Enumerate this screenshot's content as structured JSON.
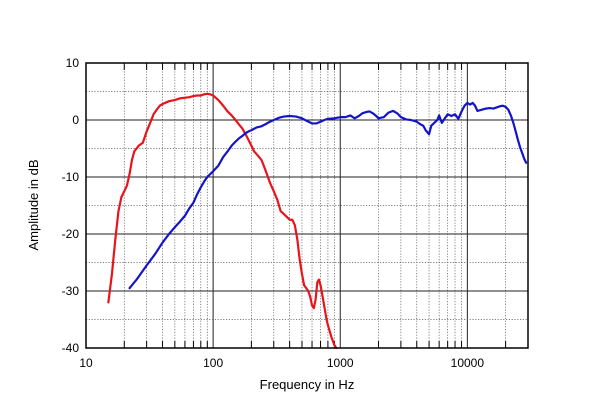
{
  "chart_data": {
    "type": "line",
    "title": "",
    "xlabel": "Frequency in Hz",
    "ylabel": "Amplitude in dB",
    "xscale": "log",
    "xlim": [
      10,
      30000
    ],
    "ylim": [
      -40,
      10
    ],
    "x_ticks": [
      {
        "value": 10,
        "label": "10"
      },
      {
        "value": 100,
        "label": "100"
      },
      {
        "value": 1000,
        "label": "1000"
      },
      {
        "value": 10000,
        "label": "10000"
      }
    ],
    "y_ticks": [
      {
        "value": 10,
        "label": "10"
      },
      {
        "value": 0,
        "label": "0"
      },
      {
        "value": -10,
        "label": "-10"
      },
      {
        "value": -20,
        "label": "-20"
      },
      {
        "value": -30,
        "label": "-30"
      },
      {
        "value": -40,
        "label": "-40"
      }
    ],
    "grid": true,
    "legend": "none",
    "series": [
      {
        "color": "#e8141c",
        "points": [
          [
            15,
            -32
          ],
          [
            16,
            -27
          ],
          [
            17,
            -21
          ],
          [
            18,
            -16
          ],
          [
            19,
            -13.5
          ],
          [
            20,
            -12.5
          ],
          [
            21,
            -11.5
          ],
          [
            22,
            -9.5
          ],
          [
            23,
            -7
          ],
          [
            24,
            -5.5
          ],
          [
            26,
            -4.5
          ],
          [
            28,
            -4
          ],
          [
            30,
            -2
          ],
          [
            32,
            -0.5
          ],
          [
            34,
            1
          ],
          [
            36,
            1.8
          ],
          [
            38,
            2.5
          ],
          [
            40,
            2.8
          ],
          [
            45,
            3.3
          ],
          [
            50,
            3.5
          ],
          [
            55,
            3.8
          ],
          [
            60,
            3.9
          ],
          [
            65,
            4
          ],
          [
            70,
            4.2
          ],
          [
            75,
            4.3
          ],
          [
            80,
            4.3
          ],
          [
            85,
            4.5
          ],
          [
            90,
            4.6
          ],
          [
            95,
            4.5
          ],
          [
            100,
            4.3
          ],
          [
            110,
            3.5
          ],
          [
            120,
            2.5
          ],
          [
            130,
            1.5
          ],
          [
            140,
            0.8
          ],
          [
            150,
            0
          ],
          [
            160,
            -0.8
          ],
          [
            170,
            -1.5
          ],
          [
            180,
            -2.5
          ],
          [
            190,
            -3.5
          ],
          [
            200,
            -4.5
          ],
          [
            210,
            -5.5
          ],
          [
            220,
            -6
          ],
          [
            230,
            -6.5
          ],
          [
            240,
            -7
          ],
          [
            250,
            -8
          ],
          [
            260,
            -9
          ],
          [
            280,
            -11
          ],
          [
            300,
            -12.5
          ],
          [
            320,
            -14
          ],
          [
            340,
            -16
          ],
          [
            360,
            -16.5
          ],
          [
            380,
            -17
          ],
          [
            400,
            -17.5
          ],
          [
            420,
            -17.5
          ],
          [
            440,
            -18.5
          ],
          [
            460,
            -21
          ],
          [
            480,
            -24.5
          ],
          [
            500,
            -27
          ],
          [
            520,
            -29
          ],
          [
            540,
            -29.5
          ],
          [
            560,
            -30
          ],
          [
            580,
            -31
          ],
          [
            600,
            -32.5
          ],
          [
            620,
            -33
          ],
          [
            640,
            -31.5
          ],
          [
            660,
            -28.5
          ],
          [
            680,
            -28
          ],
          [
            700,
            -29
          ],
          [
            720,
            -30.5
          ],
          [
            740,
            -32
          ],
          [
            760,
            -33.5
          ],
          [
            780,
            -35
          ],
          [
            800,
            -36
          ],
          [
            850,
            -38
          ],
          [
            900,
            -39.5
          ],
          [
            930,
            -40
          ]
        ]
      },
      {
        "color": "#1414c8",
        "points": [
          [
            22,
            -29.5
          ],
          [
            25,
            -28
          ],
          [
            30,
            -25.5
          ],
          [
            35,
            -23.5
          ],
          [
            40,
            -21.5
          ],
          [
            45,
            -20
          ],
          [
            50,
            -18.8
          ],
          [
            55,
            -17.8
          ],
          [
            60,
            -16.8
          ],
          [
            65,
            -15.5
          ],
          [
            70,
            -14.5
          ],
          [
            75,
            -13
          ],
          [
            80,
            -11.8
          ],
          [
            85,
            -10.8
          ],
          [
            90,
            -10
          ],
          [
            100,
            -9
          ],
          [
            110,
            -8
          ],
          [
            120,
            -6.5
          ],
          [
            130,
            -5.5
          ],
          [
            140,
            -4.5
          ],
          [
            150,
            -3.8
          ],
          [
            160,
            -3.2
          ],
          [
            170,
            -2.8
          ],
          [
            180,
            -2.3
          ],
          [
            190,
            -2
          ],
          [
            200,
            -1.8
          ],
          [
            220,
            -1.3
          ],
          [
            240,
            -1.1
          ],
          [
            260,
            -0.7
          ],
          [
            280,
            -0.3
          ],
          [
            300,
            0
          ],
          [
            330,
            0.4
          ],
          [
            360,
            0.6
          ],
          [
            400,
            0.7
          ],
          [
            450,
            0.6
          ],
          [
            500,
            0.3
          ],
          [
            550,
            -0.2
          ],
          [
            600,
            -0.6
          ],
          [
            650,
            -0.6
          ],
          [
            700,
            -0.3
          ],
          [
            750,
            0
          ],
          [
            800,
            0.2
          ],
          [
            900,
            0.3
          ],
          [
            1000,
            0.5
          ],
          [
            1100,
            0.5
          ],
          [
            1200,
            0.8
          ],
          [
            1300,
            0.3
          ],
          [
            1400,
            0.7
          ],
          [
            1500,
            1.2
          ],
          [
            1600,
            1.4
          ],
          [
            1700,
            1.5
          ],
          [
            1800,
            1.2
          ],
          [
            1900,
            0.8
          ],
          [
            2000,
            0.3
          ],
          [
            2200,
            0.5
          ],
          [
            2400,
            1.3
          ],
          [
            2600,
            1.6
          ],
          [
            2800,
            1.2
          ],
          [
            3000,
            0.5
          ],
          [
            3300,
            0.1
          ],
          [
            3600,
            0
          ],
          [
            4000,
            -0.3
          ],
          [
            4300,
            -0.8
          ],
          [
            4500,
            -1
          ],
          [
            4700,
            -1.8
          ],
          [
            5000,
            -2.5
          ],
          [
            5200,
            -1
          ],
          [
            5500,
            -0.5
          ],
          [
            5800,
            0
          ],
          [
            6000,
            0.8
          ],
          [
            6300,
            -0.5
          ],
          [
            6700,
            0.4
          ],
          [
            7000,
            1
          ],
          [
            7500,
            0.7
          ],
          [
            8000,
            1
          ],
          [
            8500,
            0.2
          ],
          [
            9000,
            1.5
          ],
          [
            9500,
            2.5
          ],
          [
            10000,
            3
          ],
          [
            10500,
            2.7
          ],
          [
            11000,
            3
          ],
          [
            11500,
            2.5
          ],
          [
            12000,
            1.6
          ],
          [
            13000,
            1.8
          ],
          [
            14000,
            2
          ],
          [
            15000,
            2.1
          ],
          [
            16000,
            2
          ],
          [
            17000,
            2.2
          ],
          [
            18000,
            2.4
          ],
          [
            19000,
            2.5
          ],
          [
            20000,
            2.3
          ],
          [
            21000,
            1.8
          ],
          [
            22000,
            0.8
          ],
          [
            23000,
            -0.5
          ],
          [
            24000,
            -2
          ],
          [
            25000,
            -3.5
          ],
          [
            26000,
            -4.8
          ],
          [
            27000,
            -5.8
          ],
          [
            28000,
            -6.8
          ],
          [
            29000,
            -7.5
          ]
        ]
      }
    ]
  }
}
